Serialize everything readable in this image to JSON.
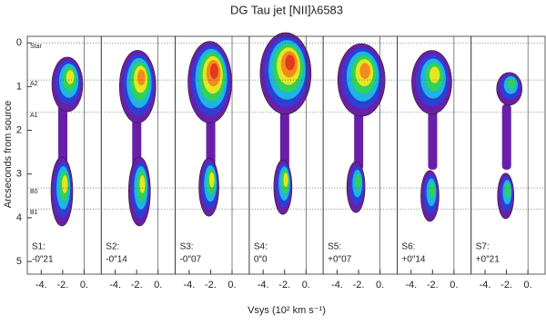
{
  "chart_data": {
    "type": "contour-panels",
    "title": "DG Tau jet [NII]λ6583",
    "y_label": "Arcseconds from source",
    "x_label": "Vsys (10² km s⁻¹)",
    "ylim": [
      -0.15,
      5.29
    ],
    "yticks": [
      0,
      1,
      2,
      3,
      4,
      5
    ],
    "xlim": [
      -5.3,
      1.6
    ],
    "xticks": [
      {
        "value": -4,
        "label": "-4."
      },
      {
        "value": -2,
        "label": "-2."
      },
      {
        "value": 0,
        "label": "0."
      }
    ],
    "reference_lines": [
      {
        "label": "Star",
        "value": 0
      },
      {
        "label": "A2",
        "value": 0.85
      },
      {
        "label": "A1",
        "value": 1.58
      },
      {
        "label": "B0",
        "value": 3.32
      },
      {
        "label": "B1",
        "value": 3.8
      }
    ],
    "panels": [
      {
        "name": "S1:",
        "offset": "-0″21"
      },
      {
        "name": "S2:",
        "offset": "-0″14"
      },
      {
        "name": "S3:",
        "offset": "-0″07"
      },
      {
        "name": "S4:",
        "offset": "0″0"
      },
      {
        "name": "S5:",
        "offset": "+0″07"
      },
      {
        "name": "S6:",
        "offset": "+0″14"
      },
      {
        "name": "S7:",
        "offset": "+0″21"
      }
    ]
  }
}
